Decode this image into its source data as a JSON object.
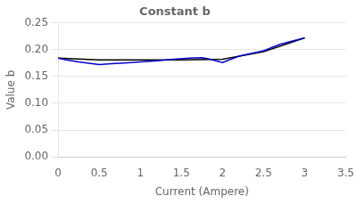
{
  "chart_data": {
    "type": "line",
    "title": "Constant b",
    "xlabel": "Current (Ampere)",
    "ylabel": "Value b",
    "xlim": [
      0,
      3.5
    ],
    "ylim": [
      0.0,
      0.25
    ],
    "xticks": [
      0,
      0.5,
      1.0,
      1.5,
      2.0,
      2.5,
      3.0,
      3.5
    ],
    "yticks": [
      {
        "value": 0,
        "label": "0.00"
      },
      0.05,
      {
        "value": 0.1,
        "label": "0.10"
      },
      0.15,
      {
        "value": 0.2,
        "label": "0.20"
      },
      0.25
    ],
    "grid": "y",
    "series": [
      {
        "color": "#000000",
        "x": [
          0,
          0.5,
          1.0,
          1.5,
          2.0,
          2.5,
          3.0
        ],
        "values": [
          0.184,
          0.181,
          0.181,
          0.181,
          0.182,
          0.196,
          0.222
        ]
      },
      {
        "color": "#0000cc",
        "x": [
          0,
          0.1,
          0.25,
          0.5,
          0.65,
          0.8,
          1.0,
          1.2,
          1.4,
          1.6,
          1.75,
          1.85,
          2.0,
          2.2,
          2.5,
          2.7,
          3.0
        ],
        "values": [
          0.184,
          0.181,
          0.177,
          0.172,
          0.174,
          0.175,
          0.177,
          0.179,
          0.182,
          0.184,
          0.185,
          0.182,
          0.176,
          0.188,
          0.198,
          0.21,
          0.222
        ]
      }
    ]
  }
}
